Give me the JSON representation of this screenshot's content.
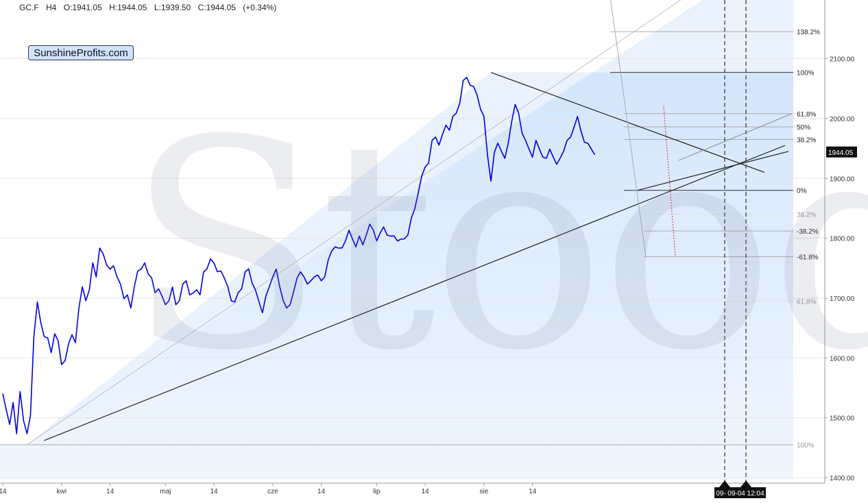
{
  "header": {
    "symbol": "GC.F",
    "interval": "H4",
    "open": "O:1941.05",
    "high": "H:1944.05",
    "low": "L:1939.50",
    "close": "C:1944.05",
    "change": "(+0.34%)"
  },
  "logo": "SunshineProfits.com",
  "watermark": "Stooq",
  "chart_data": {
    "type": "line",
    "title": "",
    "xlabel": "",
    "ylabel": "",
    "ylim": [
      1390,
      2130
    ],
    "y_ticks": [
      "2100.00",
      "2000.00",
      "1900.00",
      "1800.00",
      "1700.00",
      "1600.00",
      "1500.00",
      "1400.00"
    ],
    "y_tick_values": [
      2100,
      2000,
      1900,
      1800,
      1700,
      1600,
      1500,
      1400
    ],
    "x_ticks": [
      "14",
      "kwi",
      "14",
      "maj",
      "14",
      "cze",
      "14",
      "lip",
      "14",
      "sie",
      "14"
    ],
    "x_tick_days": [
      0,
      17,
      31,
      47,
      61,
      78,
      92,
      108,
      122,
      139,
      153
    ],
    "x_range_days": [
      0,
      189
    ],
    "last_price": "1944.05",
    "date_markers": [
      {
        "label": "09-01",
        "day": 171
      },
      {
        "label": "09-04 12:04",
        "day": 176.5
      }
    ],
    "series": [
      {
        "color": "#0000dd",
        "points": [
          [
            0,
            1545
          ],
          [
            1,
            1510
          ],
          [
            2,
            1490
          ],
          [
            3,
            1530
          ],
          [
            4,
            1470
          ],
          [
            5,
            1545
          ],
          [
            6,
            1500
          ],
          [
            7,
            1470
          ],
          [
            8,
            1505
          ],
          [
            9,
            1640
          ],
          [
            10,
            1690
          ],
          [
            11,
            1660
          ],
          [
            12,
            1640
          ],
          [
            13,
            1630
          ],
          [
            14,
            1610
          ],
          [
            15,
            1645
          ],
          [
            16,
            1625
          ],
          [
            17,
            1590
          ],
          [
            18,
            1600
          ],
          [
            19,
            1620
          ],
          [
            20,
            1640
          ],
          [
            21,
            1630
          ],
          [
            22,
            1680
          ],
          [
            23,
            1720
          ],
          [
            24,
            1700
          ],
          [
            25,
            1710
          ],
          [
            26,
            1760
          ],
          [
            27,
            1740
          ],
          [
            28,
            1780
          ],
          [
            29,
            1775
          ],
          [
            30,
            1760
          ],
          [
            31,
            1745
          ],
          [
            32,
            1755
          ],
          [
            33,
            1740
          ],
          [
            34,
            1720
          ],
          [
            35,
            1700
          ],
          [
            36,
            1710
          ],
          [
            37,
            1680
          ],
          [
            38,
            1720
          ],
          [
            39,
            1750
          ],
          [
            40,
            1745
          ],
          [
            41,
            1760
          ],
          [
            42,
            1745
          ],
          [
            43,
            1730
          ],
          [
            44,
            1710
          ],
          [
            45,
            1720
          ],
          [
            46,
            1700
          ],
          [
            47,
            1690
          ],
          [
            48,
            1700
          ],
          [
            49,
            1715
          ],
          [
            50,
            1690
          ],
          [
            51,
            1700
          ],
          [
            52,
            1720
          ],
          [
            53,
            1730
          ],
          [
            54,
            1710
          ],
          [
            55,
            1705
          ],
          [
            56,
            1715
          ],
          [
            57,
            1710
          ],
          [
            58,
            1740
          ],
          [
            59,
            1750
          ],
          [
            60,
            1770
          ],
          [
            61,
            1755
          ],
          [
            62,
            1745
          ],
          [
            63,
            1750
          ],
          [
            64,
            1730
          ],
          [
            65,
            1720
          ],
          [
            66,
            1700
          ],
          [
            67,
            1690
          ],
          [
            68,
            1710
          ],
          [
            69,
            1720
          ],
          [
            70,
            1740
          ],
          [
            71,
            1750
          ],
          [
            72,
            1730
          ],
          [
            73,
            1710
          ],
          [
            74,
            1695
          ],
          [
            75,
            1680
          ],
          [
            76,
            1700
          ],
          [
            77,
            1720
          ],
          [
            78,
            1740
          ],
          [
            79,
            1745
          ],
          [
            80,
            1720
          ],
          [
            81,
            1700
          ],
          [
            82,
            1680
          ],
          [
            83,
            1690
          ],
          [
            84,
            1715
          ],
          [
            85,
            1730
          ],
          [
            86,
            1745
          ],
          [
            87,
            1740
          ],
          [
            88,
            1720
          ],
          [
            89,
            1730
          ],
          [
            90,
            1740
          ],
          [
            91,
            1735
          ],
          [
            92,
            1730
          ],
          [
            93,
            1740
          ],
          [
            94,
            1760
          ],
          [
            95,
            1780
          ],
          [
            96,
            1790
          ],
          [
            97,
            1780
          ],
          [
            98,
            1785
          ],
          [
            99,
            1800
          ],
          [
            100,
            1810
          ],
          [
            101,
            1800
          ],
          [
            102,
            1790
          ],
          [
            103,
            1800
          ],
          [
            104,
            1790
          ],
          [
            105,
            1810
          ],
          [
            106,
            1820
          ],
          [
            107,
            1815
          ],
          [
            108,
            1800
          ],
          [
            109,
            1805
          ],
          [
            110,
            1820
          ],
          [
            111,
            1810
          ],
          [
            112,
            1800
          ],
          [
            113,
            1805
          ],
          [
            114,
            1800
          ],
          [
            115,
            1795
          ],
          [
            116,
            1800
          ],
          [
            117,
            1810
          ],
          [
            118,
            1830
          ],
          [
            119,
            1850
          ],
          [
            120,
            1880
          ],
          [
            121,
            1900
          ],
          [
            122,
            1920
          ],
          [
            123,
            1930
          ],
          [
            124,
            1960
          ],
          [
            125,
            1970
          ],
          [
            126,
            1960
          ],
          [
            127,
            1970
          ],
          [
            128,
            1990
          ],
          [
            129,
            1985
          ],
          [
            130,
            2000
          ],
          [
            131,
            2010
          ],
          [
            132,
            2030
          ],
          [
            133,
            2060
          ],
          [
            134,
            2070
          ],
          [
            135,
            2060
          ],
          [
            136,
            2050
          ],
          [
            137,
            2040
          ],
          [
            138,
            2020
          ],
          [
            139,
            2000
          ],
          [
            140,
            1940
          ],
          [
            141,
            1900
          ],
          [
            142,
            1940
          ],
          [
            143,
            1960
          ],
          [
            144,
            1950
          ],
          [
            145,
            1930
          ],
          [
            146,
            1960
          ],
          [
            147,
            2000
          ],
          [
            148,
            2020
          ],
          [
            149,
            2010
          ],
          [
            150,
            1980
          ],
          [
            151,
            1960
          ],
          [
            152,
            1950
          ],
          [
            153,
            1940
          ],
          [
            154,
            1960
          ],
          [
            155,
            1950
          ],
          [
            156,
            1940
          ],
          [
            157,
            1930
          ],
          [
            158,
            1950
          ],
          [
            159,
            1940
          ],
          [
            160,
            1920
          ],
          [
            161,
            1935
          ],
          [
            162,
            1950
          ],
          [
            163,
            1960
          ],
          [
            164,
            1970
          ],
          [
            165,
            1990
          ],
          [
            166,
            2000
          ],
          [
            167,
            1980
          ],
          [
            168,
            1965
          ],
          [
            169,
            1955
          ],
          [
            170,
            1950
          ],
          [
            171,
            1944
          ]
        ]
      }
    ],
    "fibonacci_right": [
      {
        "label": "138.2%",
        "value": 2145
      },
      {
        "label": "100%",
        "value": 2077
      },
      {
        "label": "61.8%",
        "value": 2008
      },
      {
        "label": "50%",
        "value": 1986
      },
      {
        "label": "38.2%",
        "value": 1965
      },
      {
        "label": "0%",
        "value": 1880
      },
      {
        "label": "-38.2%",
        "value": 1812
      },
      {
        "label": "-61.8%",
        "value": 1769
      }
    ],
    "fibonacci_grey": [
      {
        "label": "38.2%",
        "value": 1840
      },
      {
        "label": "61.8%",
        "value": 1695
      },
      {
        "label": "100%",
        "value": 1455
      }
    ]
  }
}
